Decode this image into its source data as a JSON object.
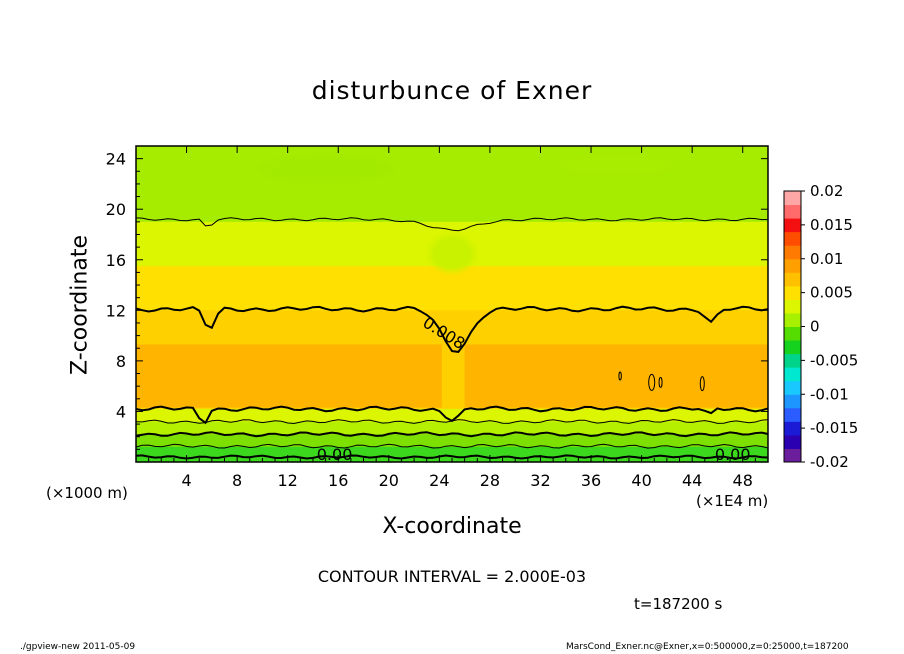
{
  "chart_data": {
    "type": "heatmap",
    "title": "disturbunce of Exner",
    "xlabel": "X-coordinate",
    "ylabel": "Z-coordinate",
    "x_unit_note": "(×1E4 m)",
    "y_unit_note": "(×1000 m)",
    "xlim": [
      0,
      50
    ],
    "ylim": [
      0,
      25
    ],
    "x_ticks": [
      "4",
      "8",
      "12",
      "16",
      "20",
      "24",
      "28",
      "32",
      "36",
      "40",
      "44",
      "48"
    ],
    "y_ticks": [
      "4",
      "8",
      "12",
      "16",
      "20",
      "24"
    ],
    "colorbar": {
      "labels": [
        "0.02",
        "0.015",
        "0.01",
        "0.005",
        "0",
        "-0.005",
        "-0.01",
        "-0.015",
        "-0.02"
      ],
      "range": [
        -0.02,
        0.02
      ],
      "colors": [
        "#6a1e9c",
        "#2a00b0",
        "#1b1bd6",
        "#2a5cff",
        "#1e96ff",
        "#19c8ff",
        "#00e8d0",
        "#00d48a",
        "#14d21e",
        "#55dc00",
        "#a6f000",
        "#dcf500",
        "#ffe000",
        "#ffc000",
        "#ffa000",
        "#ff7a00",
        "#ff4d00",
        "#f41010",
        "#ff6a6a",
        "#ffa6a6"
      ]
    },
    "contour_labels": [
      "0.008",
      "0.00"
    ],
    "contour_interval": "CONTOUR INTERVAL = 2.000E-03",
    "time": "t=187200 s",
    "legend": "right"
  },
  "footer": {
    "left": "./gpview-new   2011-05-09",
    "right": "MarsCond_Exner.nc@Exner,x=0:500000,z=0:25000,t=187200"
  }
}
